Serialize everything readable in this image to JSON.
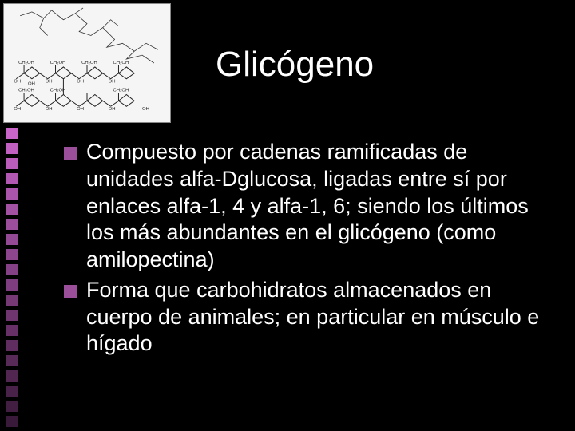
{
  "slide": {
    "title": "Glicógeno",
    "title_color": "#ffffff",
    "title_fontsize": 44,
    "background_color": "#000000",
    "bullet_color": "#9b4f9b",
    "text_color": "#ffffff",
    "body_fontsize": 27,
    "decor_squares": {
      "count": 20,
      "size": 14,
      "gap": 5,
      "color_top": "#c964c9",
      "color_bottom": "#3a1a3a"
    },
    "bullets": [
      {
        "text": "Compuesto por cadenas ramificadas de unidades alfa-Dglucosa, ligadas entre sí por enlaces alfa-1, 4 y alfa-1, 6; siendo los últimos los más abundantes en el glicógeno (como amilopectina)"
      },
      {
        "text": "Forma que carbohidratos almacenados en cuerpo de animales; en particular en músculo e hígado"
      }
    ],
    "image": {
      "description": "glycogen-structure-diagram",
      "background": "#f5f5f5",
      "stroke": "#333333"
    }
  }
}
